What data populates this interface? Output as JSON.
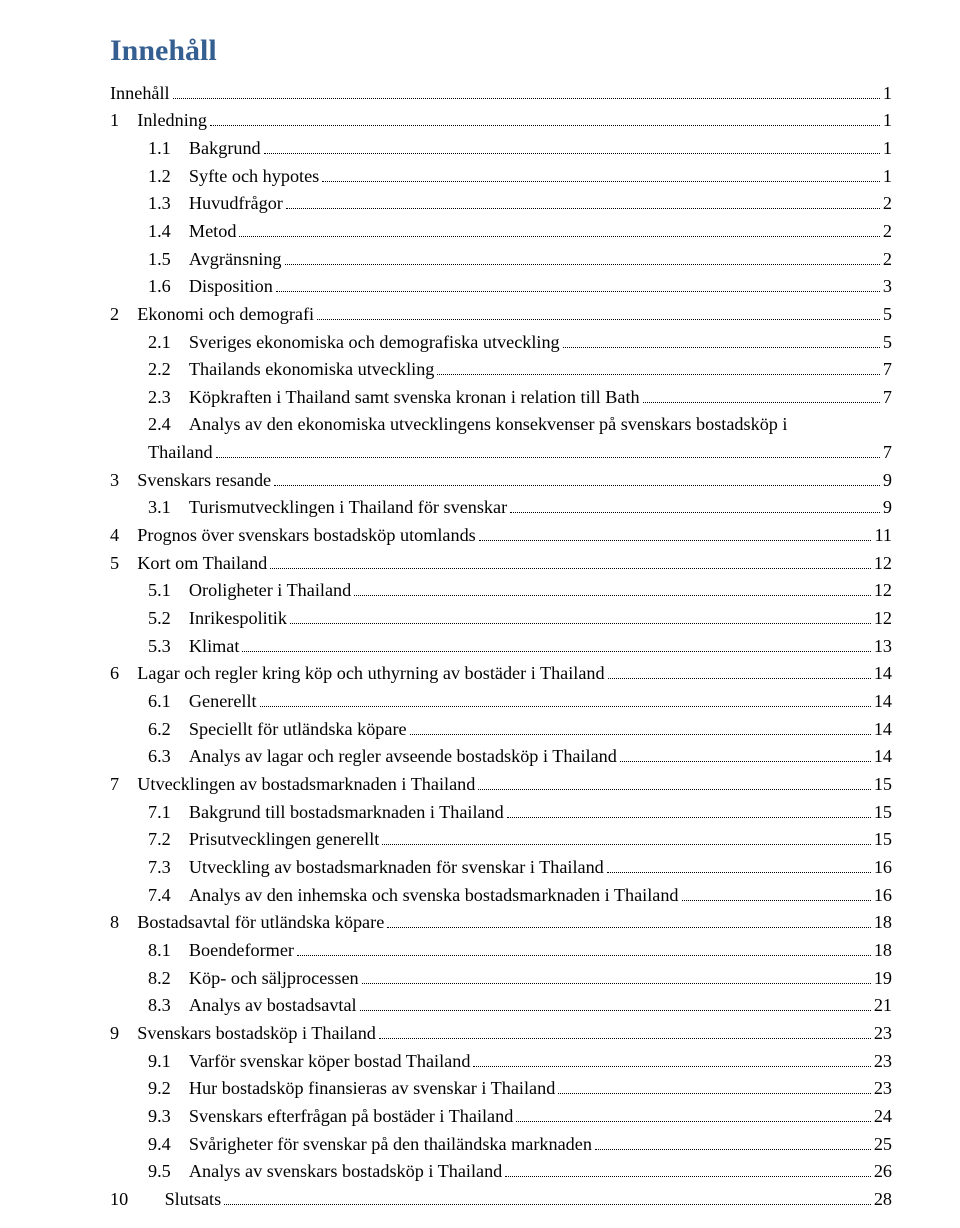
{
  "title": "Innehåll",
  "colors": {
    "title": "#365f91",
    "text": "#000000",
    "background": "#ffffff"
  },
  "typography": {
    "title_fontsize": 30,
    "body_fontsize": 18.2,
    "font_family": "Times New Roman"
  },
  "toc": [
    {
      "indent": 0,
      "label": "Innehåll",
      "page": "1"
    },
    {
      "indent": 0,
      "label": "1 Inledning",
      "page": "1"
    },
    {
      "indent": 1,
      "label": "1.1 Bakgrund",
      "page": "1"
    },
    {
      "indent": 1,
      "label": "1.2 Syfte och hypotes",
      "page": "1"
    },
    {
      "indent": 1,
      "label": "1.3 Huvudfrågor",
      "page": "2"
    },
    {
      "indent": 1,
      "label": "1.4 Metod",
      "page": "2"
    },
    {
      "indent": 1,
      "label": "1.5 Avgränsning",
      "page": "2"
    },
    {
      "indent": 1,
      "label": "1.6 Disposition",
      "page": "3"
    },
    {
      "indent": 0,
      "label": "2 Ekonomi och demografi",
      "page": "5"
    },
    {
      "indent": 1,
      "label": "2.1 Sveriges ekonomiska och demografiska utveckling",
      "page": "5"
    },
    {
      "indent": 1,
      "label": "2.2 Thailands ekonomiska utveckling",
      "page": "7"
    },
    {
      "indent": 1,
      "label": "2.3 Köpkraften i Thailand samt svenska kronan i relation till Bath",
      "page": "7"
    },
    {
      "indent": 1,
      "label": "2.4 Analys av den ekonomiska utvecklingens konsekvenser på svenskars bostadsköp i",
      "cont_label": "Thailand",
      "page": "7"
    },
    {
      "indent": 0,
      "label": "3 Svenskars resande",
      "page": "9"
    },
    {
      "indent": 1,
      "label": "3.1 Turismutvecklingen i Thailand för svenskar",
      "page": "9"
    },
    {
      "indent": 0,
      "label": "4 Prognos över svenskars bostadsköp utomlands",
      "page": "11"
    },
    {
      "indent": 0,
      "label": "5 Kort om Thailand",
      "page": "12"
    },
    {
      "indent": 1,
      "label": "5.1 Oroligheter i Thailand",
      "page": "12"
    },
    {
      "indent": 1,
      "label": "5.2 Inrikespolitik",
      "page": "12"
    },
    {
      "indent": 1,
      "label": "5.3 Klimat",
      "page": "13"
    },
    {
      "indent": 0,
      "label": "6 Lagar och regler kring köp och uthyrning av bostäder i Thailand",
      "page": "14"
    },
    {
      "indent": 1,
      "label": "6.1 Generellt",
      "page": "14"
    },
    {
      "indent": 1,
      "label": "6.2 Speciellt för utländska köpare",
      "page": "14"
    },
    {
      "indent": 1,
      "label": "6.3 Analys av lagar och regler avseende bostadsköp i Thailand",
      "page": "14"
    },
    {
      "indent": 0,
      "label": "7 Utvecklingen av bostadsmarknaden i Thailand",
      "page": "15"
    },
    {
      "indent": 1,
      "label": "7.1 Bakgrund till bostadsmarknaden i Thailand",
      "page": "15"
    },
    {
      "indent": 1,
      "label": "7.2 Prisutvecklingen generellt",
      "page": "15"
    },
    {
      "indent": 1,
      "label": "7.3 Utveckling av bostadsmarknaden för svenskar i Thailand",
      "page": "16"
    },
    {
      "indent": 1,
      "label": "7.4 Analys av den inhemska och svenska bostadsmarknaden i Thailand",
      "page": "16"
    },
    {
      "indent": 0,
      "label": "8 Bostadsavtal för utländska köpare",
      "page": "18"
    },
    {
      "indent": 1,
      "label": "8.1 Boendeformer",
      "page": "18"
    },
    {
      "indent": 1,
      "label": "8.2 Köp- och säljprocessen",
      "page": "19"
    },
    {
      "indent": 1,
      "label": "8.3 Analys av bostadsavtal",
      "page": "21"
    },
    {
      "indent": 0,
      "label": "9 Svenskars bostadsköp i Thailand",
      "page": "23"
    },
    {
      "indent": 1,
      "label": "9.1 Varför svenskar köper bostad Thailand",
      "page": "23"
    },
    {
      "indent": 1,
      "label": "9.2 Hur bostadsköp finansieras av svenskar i Thailand",
      "page": "23"
    },
    {
      "indent": 1,
      "label": "9.3 Svenskars efterfrågan på bostäder i Thailand",
      "page": "24"
    },
    {
      "indent": 1,
      "label": "9.4 Svårigheter för svenskar på den thailändska marknaden",
      "page": "25"
    },
    {
      "indent": 1,
      "label": "9.5 Analys av svenskars bostadsköp i Thailand",
      "page": "26"
    },
    {
      "indent": 0,
      "label": "10  Slutsats",
      "page": "28"
    }
  ]
}
